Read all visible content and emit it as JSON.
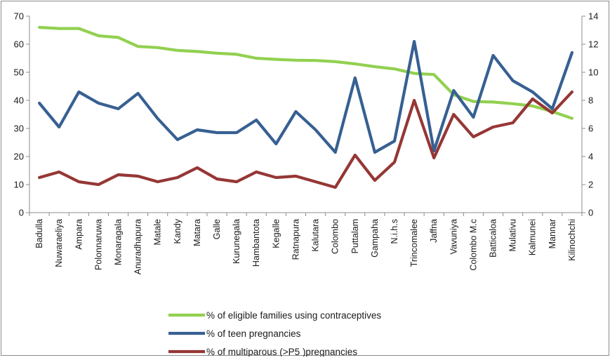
{
  "chart_data": {
    "type": "line",
    "categories": [
      "Badulla",
      "Nuwaraeliya",
      "Ampara",
      "Polonnaruwa",
      "Monaragala",
      "Anuradhapura",
      "Matale",
      "Kandy",
      "Matara",
      "Galle",
      "Kurunegala",
      "Hambantota",
      "Kegalle",
      "Ratnapura",
      "Kalutara",
      "Colombo",
      "Puttalam",
      "Gampaha",
      "N.i.h.s",
      "Trincomalee",
      "Jaffna",
      "Vavuniya",
      "Colombo M.c",
      "Batticaloa",
      "Mulativu",
      "Kalmunei",
      "Mannar",
      "Kilinochchi"
    ],
    "y_left": {
      "ylim": [
        0,
        70
      ],
      "ticks": [
        "0",
        "10",
        "20",
        "30",
        "40",
        "50",
        "60",
        "70"
      ]
    },
    "y_right": {
      "ylim": [
        0,
        14
      ],
      "ticks": [
        "0",
        "2",
        "4",
        "6",
        "8",
        "10",
        "12",
        "14"
      ]
    },
    "series": [
      {
        "name": "%  of eligible families  using contraceptives",
        "axis": "left",
        "color": "#92d050",
        "values": [
          66.0,
          65.6,
          65.6,
          63.0,
          62.4,
          59.2,
          58.8,
          57.8,
          57.4,
          56.8,
          56.4,
          55.0,
          54.6,
          54.3,
          54.2,
          53.8,
          53.0,
          52.0,
          51.2,
          49.6,
          49.2,
          42.0,
          39.6,
          39.4,
          38.8,
          38.0,
          36.0,
          33.6
        ]
      },
      {
        "name": "% of teen pregnancies",
        "axis": "right",
        "color": "#376092",
        "values": [
          7.8,
          6.1,
          8.6,
          7.8,
          7.4,
          8.5,
          6.7,
          5.2,
          5.9,
          5.7,
          5.7,
          6.6,
          4.9,
          7.2,
          5.9,
          4.3,
          9.6,
          4.3,
          5.1,
          12.2,
          4.4,
          8.7,
          6.8,
          11.2,
          9.4,
          8.6,
          7.4,
          11.4
        ]
      },
      {
        "name": "% of multiparous (>P5 )pregnancies",
        "axis": "right",
        "color": "#953735",
        "values": [
          2.5,
          2.9,
          2.2,
          2.0,
          2.7,
          2.6,
          2.2,
          2.5,
          3.2,
          2.4,
          2.2,
          2.9,
          2.5,
          2.6,
          2.2,
          1.8,
          4.1,
          2.3,
          3.6,
          8.0,
          3.9,
          7.0,
          5.4,
          6.1,
          6.4,
          8.1,
          7.1,
          8.6
        ]
      }
    ],
    "legend": "bottom",
    "grid": false
  }
}
